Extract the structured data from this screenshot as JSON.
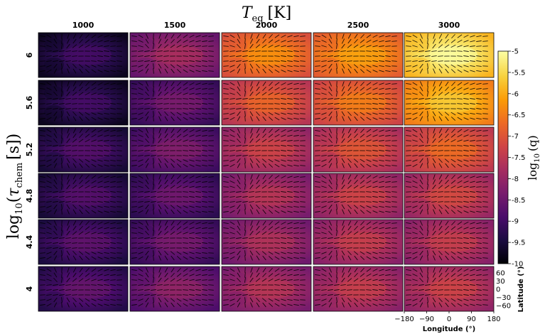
{
  "figure": {
    "column_header": {
      "main": "T",
      "sub": "eq",
      "unit": "[K]"
    },
    "row_header": {
      "prefix": "log",
      "base": "10",
      "open": "(",
      "main": "τ",
      "sub": "chem",
      "unit": "[s]",
      "close": ")"
    },
    "colorbar_label": {
      "prefix": "log",
      "base": "10",
      "body": "(q)"
    }
  },
  "chart_data": {
    "type": "heatmap",
    "columns": [
      "1000",
      "1500",
      "2000",
      "2500",
      "3000"
    ],
    "rows": [
      "6",
      "5.6",
      "5.2",
      "4.8",
      "4.4",
      "4"
    ],
    "xlabel": "Longitude (°)",
    "ylabel": "Latitude (°)",
    "x_ticks": [
      "−180",
      "−90",
      "0",
      "90",
      "180"
    ],
    "y_ticks": [
      "60",
      "30",
      "0",
      "−30",
      "−60"
    ],
    "colorbar": {
      "range": [
        -10,
        -5
      ],
      "ticks": [
        "-5",
        "-5.5",
        "-6",
        "-6.5",
        "-7",
        "-7.5",
        "-8",
        "-8.5",
        "-9",
        "-9.5",
        "-10"
      ],
      "ticks_values": [
        -5,
        -5.5,
        -6,
        -6.5,
        -7,
        -7.5,
        -8,
        -8.5,
        -9,
        -9.5,
        -10
      ],
      "colormap": [
        "#000004",
        "#1b0c41",
        "#4a0c6b",
        "#781c6d",
        "#a52c60",
        "#cf4446",
        "#ed6925",
        "#fb9b06",
        "#f7d13d",
        "#fcffa4"
      ]
    },
    "panel_levels": [
      [
        -9.3,
        -8.1,
        -6.6,
        -6.4,
        -5.4
      ],
      [
        -9.3,
        -8.7,
        -7.1,
        -6.8,
        -6.0
      ],
      [
        -9.1,
        -8.6,
        -7.6,
        -7.3,
        -7.0
      ],
      [
        -9.1,
        -8.8,
        -7.9,
        -7.6,
        -7.5
      ],
      [
        -9.0,
        -8.7,
        -8.0,
        -7.7,
        -7.7
      ],
      [
        -8.9,
        -8.4,
        -7.9,
        -7.7,
        -7.6
      ]
    ]
  }
}
